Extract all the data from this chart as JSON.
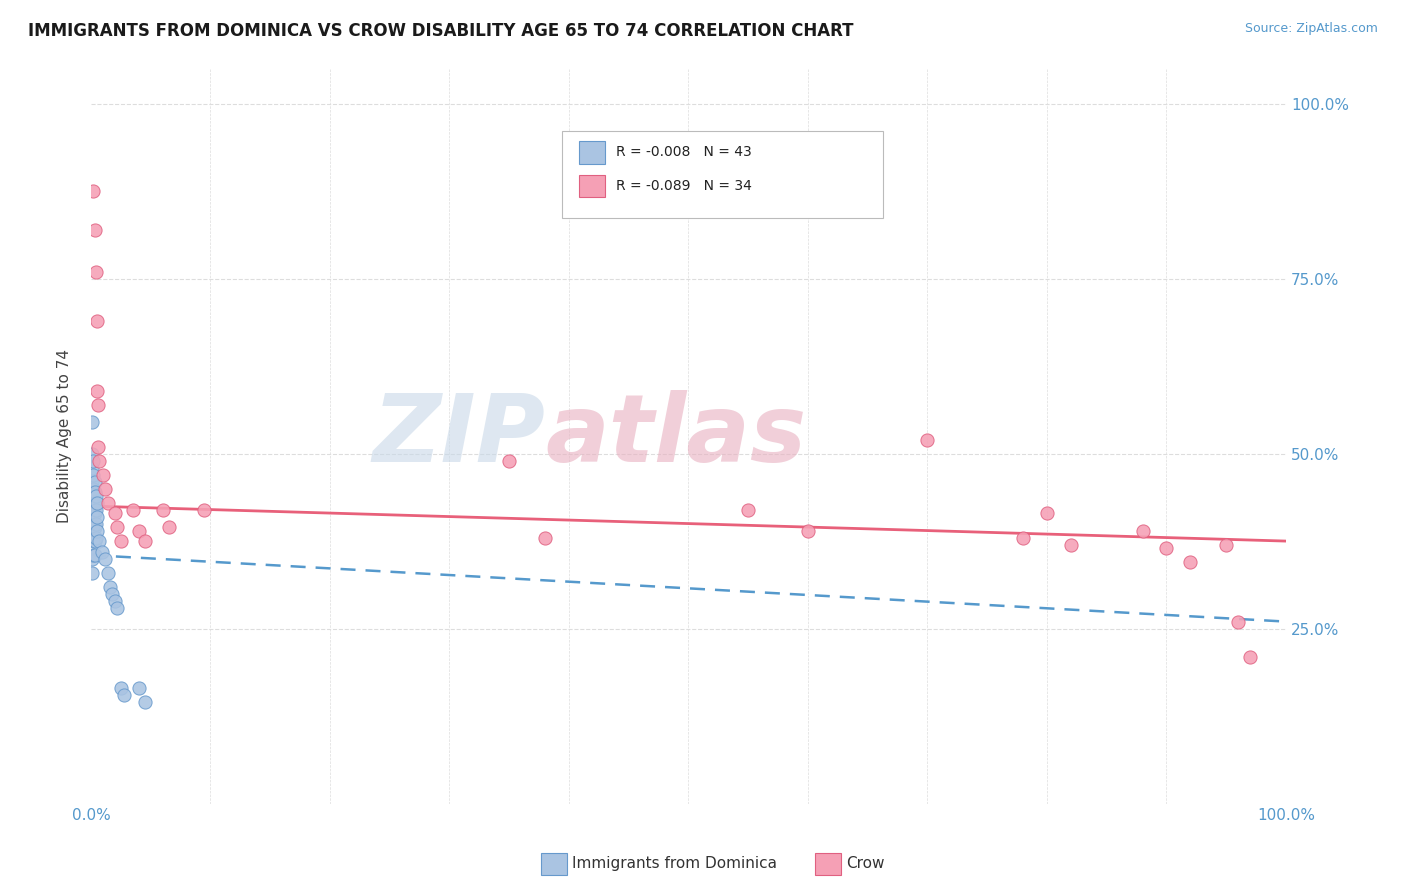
{
  "title": "IMMIGRANTS FROM DOMINICA VS CROW DISABILITY AGE 65 TO 74 CORRELATION CHART",
  "source": "Source: ZipAtlas.com",
  "ylabel": "Disability Age 65 to 74",
  "legend_label1": "Immigrants from Dominica",
  "legend_label2": "Crow",
  "R1": "-0.008",
  "N1": "43",
  "R2": "-0.089",
  "N2": "34",
  "color_blue": "#aac4e2",
  "color_pink": "#f5a0b5",
  "color_blue_edge": "#6699cc",
  "color_pink_edge": "#e06080",
  "color_blue_line": "#5599cc",
  "color_pink_line": "#e8607a",
  "color_right_label": "#5599cc",
  "watermark_color": "#c8d8e8",
  "watermark_color2": "#e8b0c0",
  "background_color": "#ffffff",
  "grid_color": "#dddddd",
  "blue_points_x": [
    0.001,
    0.001,
    0.001,
    0.001,
    0.001,
    0.001,
    0.001,
    0.001,
    0.001,
    0.002,
    0.002,
    0.002,
    0.002,
    0.002,
    0.002,
    0.002,
    0.002,
    0.003,
    0.003,
    0.003,
    0.003,
    0.003,
    0.003,
    0.003,
    0.004,
    0.004,
    0.004,
    0.004,
    0.005,
    0.005,
    0.005,
    0.007,
    0.009,
    0.012,
    0.014,
    0.016,
    0.018,
    0.02,
    0.022,
    0.025,
    0.028,
    0.04,
    0.045
  ],
  "blue_points_y": [
    0.545,
    0.5,
    0.48,
    0.46,
    0.445,
    0.43,
    0.415,
    0.35,
    0.33,
    0.49,
    0.47,
    0.45,
    0.43,
    0.415,
    0.395,
    0.375,
    0.355,
    0.46,
    0.445,
    0.43,
    0.415,
    0.395,
    0.375,
    0.355,
    0.44,
    0.42,
    0.4,
    0.38,
    0.43,
    0.41,
    0.39,
    0.375,
    0.36,
    0.35,
    0.33,
    0.31,
    0.3,
    0.29,
    0.28,
    0.165,
    0.155,
    0.165,
    0.145
  ],
  "pink_points_x": [
    0.002,
    0.003,
    0.004,
    0.005,
    0.005,
    0.006,
    0.006,
    0.007,
    0.01,
    0.012,
    0.014,
    0.02,
    0.022,
    0.025,
    0.035,
    0.04,
    0.045,
    0.06,
    0.065,
    0.095,
    0.35,
    0.38,
    0.55,
    0.6,
    0.7,
    0.78,
    0.8,
    0.82,
    0.88,
    0.9,
    0.92,
    0.95,
    0.96,
    0.97
  ],
  "pink_points_y": [
    0.875,
    0.82,
    0.76,
    0.69,
    0.59,
    0.57,
    0.51,
    0.49,
    0.47,
    0.45,
    0.43,
    0.415,
    0.395,
    0.375,
    0.42,
    0.39,
    0.375,
    0.42,
    0.395,
    0.42,
    0.49,
    0.38,
    0.42,
    0.39,
    0.52,
    0.38,
    0.415,
    0.37,
    0.39,
    0.365,
    0.345,
    0.37,
    0.26,
    0.21
  ],
  "xlim": [
    0.0,
    1.0
  ],
  "ylim": [
    0.0,
    1.05
  ],
  "blue_trend_x0": 0.0,
  "blue_trend_y0": 0.355,
  "blue_trend_x1": 1.0,
  "blue_trend_y1": 0.26,
  "pink_trend_x0": 0.0,
  "pink_trend_y0": 0.425,
  "pink_trend_x1": 1.0,
  "pink_trend_y1": 0.375
}
